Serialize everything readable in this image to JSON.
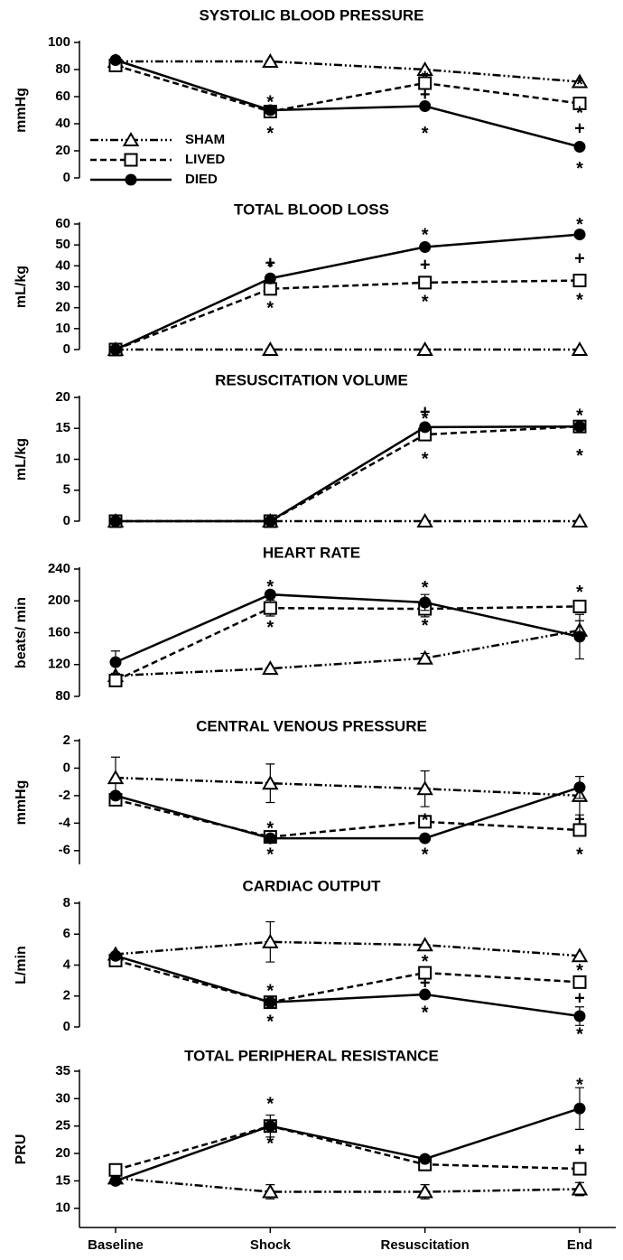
{
  "chart_data": [
    {
      "type": "line",
      "title": "SYSTOLIC BLOOD PRESSURE",
      "ylabel": "mmHg",
      "ylim": [
        0,
        100
      ],
      "yticks": [
        0,
        20,
        40,
        60,
        80,
        100
      ],
      "legend": "left",
      "series": [
        {
          "name": "SHAM",
          "marker": "triangle",
          "color": "#000000",
          "values": [
            86,
            86,
            80,
            71
          ]
        },
        {
          "name": "LIVED",
          "marker": "square",
          "color": "#000000",
          "values": [
            83,
            49,
            70,
            55
          ]
        },
        {
          "name": "DIED",
          "marker": "circle",
          "color": "#000000",
          "values": [
            87,
            50,
            53,
            23
          ]
        }
      ],
      "annotations": [
        {
          "text": "*",
          "x": "Shock",
          "y": 58
        },
        {
          "text": "*",
          "x": "Shock",
          "y": 35
        },
        {
          "text": "*",
          "x": "Resuscitation",
          "y": 76
        },
        {
          "text": "+",
          "x": "Resuscitation",
          "y": 61
        },
        {
          "text": "*",
          "x": "Resuscitation",
          "y": 35
        },
        {
          "text": "*",
          "x": "End",
          "y": 71
        },
        {
          "text": "*",
          "x": "End",
          "y": 50
        },
        {
          "text": "+",
          "x": "End",
          "y": 36
        },
        {
          "text": "*",
          "x": "End",
          "y": 9
        }
      ]
    },
    {
      "type": "line",
      "title": "TOTAL BLOOD LOSS",
      "ylabel": "mL/kg",
      "ylim": [
        0,
        60
      ],
      "yticks": [
        0,
        10,
        20,
        30,
        40,
        50,
        60
      ],
      "series": [
        {
          "name": "SHAM",
          "marker": "triangle",
          "color": "#000000",
          "values": [
            0,
            0,
            0,
            0
          ]
        },
        {
          "name": "LIVED",
          "marker": "square",
          "color": "#000000",
          "values": [
            0,
            29,
            32,
            33
          ]
        },
        {
          "name": "DIED",
          "marker": "circle",
          "color": "#000000",
          "values": [
            0,
            34,
            49,
            55
          ]
        }
      ],
      "annotations": [
        {
          "text": "*",
          "x": "Shock",
          "y": 41
        },
        {
          "text": "+",
          "x": "Shock",
          "y": 41
        },
        {
          "text": "*",
          "x": "Shock",
          "y": 21
        },
        {
          "text": "*",
          "x": "Resuscitation",
          "y": 56
        },
        {
          "text": "+",
          "x": "Resuscitation",
          "y": 40
        },
        {
          "text": "*",
          "x": "Resuscitation",
          "y": 24
        },
        {
          "text": "*",
          "x": "End",
          "y": 61
        },
        {
          "text": "+",
          "x": "End",
          "y": 43
        },
        {
          "text": "*",
          "x": "End",
          "y": 25
        }
      ]
    },
    {
      "type": "line",
      "title": "RESUSCITATION VOLUME",
      "ylabel": "mL/kg",
      "ylim": [
        0,
        20
      ],
      "yticks": [
        0,
        5,
        10,
        15,
        20
      ],
      "series": [
        {
          "name": "SHAM",
          "marker": "triangle",
          "color": "#000000",
          "values": [
            0,
            0,
            0,
            0
          ]
        },
        {
          "name": "LIVED",
          "marker": "square",
          "color": "#000000",
          "values": [
            0,
            0,
            14,
            15.3
          ]
        },
        {
          "name": "DIED",
          "marker": "circle",
          "color": "#000000",
          "values": [
            0,
            0,
            15.2,
            15.3
          ]
        }
      ],
      "annotations": [
        {
          "text": "*",
          "x": "Resuscitation",
          "y": 17
        },
        {
          "text": "+",
          "x": "Resuscitation",
          "y": 17.5
        },
        {
          "text": "*",
          "x": "Resuscitation",
          "y": 10.5
        },
        {
          "text": "*",
          "x": "End",
          "y": 17.5
        },
        {
          "text": "*",
          "x": "End",
          "y": 11
        }
      ]
    },
    {
      "type": "line",
      "title": "HEART RATE",
      "ylabel": "beats/ min",
      "ylim": [
        80,
        240
      ],
      "yticks": [
        80,
        120,
        160,
        200,
        240
      ],
      "series": [
        {
          "name": "SHAM",
          "marker": "triangle",
          "color": "#000000",
          "values": [
            106,
            115,
            128,
            163
          ],
          "errors": [
            null,
            null,
            6,
            12
          ]
        },
        {
          "name": "LIVED",
          "marker": "square",
          "color": "#000000",
          "values": [
            100,
            191,
            190,
            193
          ],
          "errors": [
            null,
            10,
            10,
            null
          ]
        },
        {
          "name": "DIED",
          "marker": "circle",
          "color": "#000000",
          "values": [
            123,
            208,
            198,
            155
          ],
          "errors": [
            14,
            null,
            10,
            28
          ]
        }
      ],
      "annotations": [
        {
          "text": "*",
          "x": "Shock",
          "y": 221
        },
        {
          "text": "*",
          "x": "Shock",
          "y": 170
        },
        {
          "text": "*",
          "x": "Resuscitation",
          "y": 220
        },
        {
          "text": "*",
          "x": "Resuscitation",
          "y": 172
        },
        {
          "text": "*",
          "x": "End",
          "y": 214
        }
      ]
    },
    {
      "type": "line",
      "title": "CENTRAL VENOUS PRESSURE",
      "ylabel": "mmHg",
      "ylim": [
        -7,
        2
      ],
      "yticks": [
        -6,
        -4,
        -2,
        0,
        2
      ],
      "series": [
        {
          "name": "SHAM",
          "marker": "triangle",
          "color": "#000000",
          "values": [
            -0.7,
            -1.1,
            -1.5,
            -2
          ],
          "errors": [
            1.5,
            1.4,
            1.3,
            1.4
          ]
        },
        {
          "name": "LIVED",
          "marker": "square",
          "color": "#000000",
          "values": [
            -2.3,
            -5,
            -3.9,
            -4.5
          ]
        },
        {
          "name": "DIED",
          "marker": "circle",
          "color": "#000000",
          "values": [
            -2,
            -5.1,
            -5.1,
            -1.4
          ],
          "errors": [
            null,
            null,
            null,
            0.8
          ]
        }
      ],
      "annotations": [
        {
          "text": "*",
          "x": "Shock",
          "y": -4.2
        },
        {
          "text": "*",
          "x": "Shock",
          "y": -6.1
        },
        {
          "text": "*",
          "x": "Resuscitation",
          "y": -3.6
        },
        {
          "text": "*",
          "x": "Resuscitation",
          "y": -6.1
        },
        {
          "text": "+",
          "x": "End",
          "y": -3.8
        },
        {
          "text": "*",
          "x": "End",
          "y": -6.1
        }
      ]
    },
    {
      "type": "line",
      "title": "CARDIAC OUTPUT",
      "ylabel": "L/min",
      "ylim": [
        0,
        8
      ],
      "yticks": [
        0,
        2,
        4,
        6,
        8
      ],
      "series": [
        {
          "name": "SHAM",
          "marker": "triangle",
          "color": "#000000",
          "values": [
            4.7,
            5.5,
            5.3,
            4.6
          ],
          "errors": [
            null,
            1.3,
            null,
            null
          ]
        },
        {
          "name": "LIVED",
          "marker": "square",
          "color": "#000000",
          "values": [
            4.3,
            1.6,
            3.5,
            2.9
          ]
        },
        {
          "name": "DIED",
          "marker": "circle",
          "color": "#000000",
          "values": [
            4.6,
            1.6,
            2.1,
            0.7
          ],
          "errors": [
            null,
            null,
            null,
            0.6
          ]
        }
      ],
      "annotations": [
        {
          "text": "*",
          "x": "Shock",
          "y": 2.5
        },
        {
          "text": "*",
          "x": "Shock",
          "y": 0.5
        },
        {
          "text": "*",
          "x": "Resuscitation",
          "y": 4.4
        },
        {
          "text": "+",
          "x": "Resuscitation",
          "y": 2.8
        },
        {
          "text": "*",
          "x": "Resuscitation",
          "y": 1.1
        },
        {
          "text": "*",
          "x": "End",
          "y": 3.8
        },
        {
          "text": "+",
          "x": "End",
          "y": 1.8
        },
        {
          "text": "*",
          "x": "End",
          "y": -0.3
        }
      ]
    },
    {
      "type": "line",
      "title": "TOTAL PERIPHERAL RESISTANCE",
      "ylabel": "PRU",
      "ylim": [
        6.5,
        35
      ],
      "yticks": [
        10,
        15,
        20,
        25,
        30,
        35
      ],
      "categories": [
        "Baseline",
        "Shock",
        "Resuscitation",
        "End"
      ],
      "series": [
        {
          "name": "SHAM",
          "marker": "triangle",
          "color": "#000000",
          "values": [
            15.5,
            13,
            13,
            13.5
          ],
          "errors": [
            null,
            1.3,
            1.3,
            1.2
          ]
        },
        {
          "name": "LIVED",
          "marker": "square",
          "color": "#000000",
          "values": [
            17,
            25,
            18,
            17.2
          ]
        },
        {
          "name": "DIED",
          "marker": "circle",
          "color": "#000000",
          "values": [
            15,
            25,
            19,
            28.2
          ],
          "errors": [
            null,
            2,
            null,
            3.8
          ]
        }
      ],
      "annotations": [
        {
          "text": "*",
          "x": "Shock",
          "y": 29.5
        },
        {
          "text": "*",
          "x": "Shock",
          "y": 22.3
        },
        {
          "text": "*",
          "x": "End",
          "y": 33
        },
        {
          "text": "+",
          "x": "End",
          "y": 20.5
        }
      ]
    }
  ]
}
